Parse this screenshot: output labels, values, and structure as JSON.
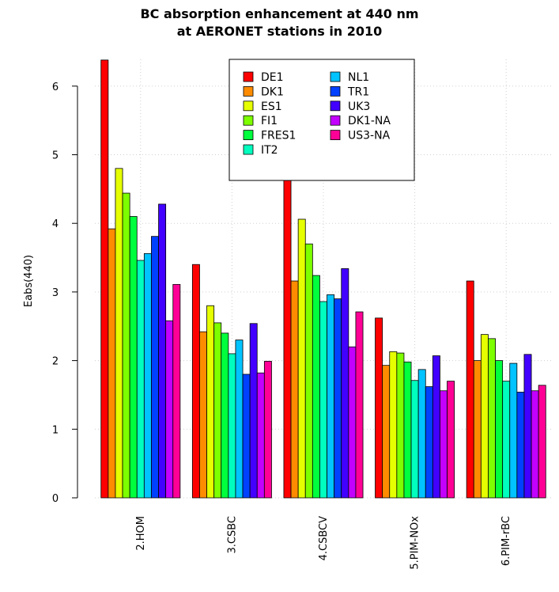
{
  "chart_data": {
    "type": "bar",
    "title": [
      "BC absorption enhancement at 440 nm",
      "at AERONET stations in 2010"
    ],
    "xlabel": "",
    "ylabel": "Eabs(440)",
    "ylim": [
      0,
      6.5
    ],
    "yticks": [
      "0",
      "1",
      "2",
      "3",
      "4",
      "5",
      "6"
    ],
    "grid": true,
    "legend_position": "top-center",
    "categories": [
      "2.HOM",
      "3.CSBC",
      "4.CSBCV",
      "5.PIM-NOx",
      "6.PIM-rBC"
    ],
    "series": [
      {
        "name": "DE1",
        "color": "#ff0000",
        "values": [
          6.38,
          3.4,
          4.92,
          2.62,
          3.16
        ]
      },
      {
        "name": "DK1",
        "color": "#ff8c00",
        "values": [
          3.92,
          2.42,
          3.16,
          1.93,
          2.0
        ]
      },
      {
        "name": "ES1",
        "color": "#e6ff00",
        "values": [
          4.8,
          2.8,
          4.06,
          2.13,
          2.38
        ]
      },
      {
        "name": "FI1",
        "color": "#7dff00",
        "values": [
          4.44,
          2.55,
          3.7,
          2.11,
          2.32
        ]
      },
      {
        "name": "FRES1",
        "color": "#00ff3c",
        "values": [
          4.1,
          2.4,
          3.24,
          1.98,
          2.0
        ]
      },
      {
        "name": "IT2",
        "color": "#00ffbe",
        "values": [
          3.46,
          2.1,
          2.86,
          1.71,
          1.7
        ]
      },
      {
        "name": "NL1",
        "color": "#00c3ff",
        "values": [
          3.56,
          2.3,
          2.96,
          1.87,
          1.96
        ]
      },
      {
        "name": "TR1",
        "color": "#0041ff",
        "values": [
          3.81,
          1.8,
          2.9,
          1.62,
          1.54
        ]
      },
      {
        "name": "UK3",
        "color": "#4100ff",
        "values": [
          4.28,
          2.54,
          3.34,
          2.07,
          2.09
        ]
      },
      {
        "name": "DK1-NA",
        "color": "#c300ff",
        "values": [
          2.58,
          1.82,
          2.2,
          1.56,
          1.56
        ]
      },
      {
        "name": "US3-NA",
        "color": "#ff0096",
        "values": [
          3.11,
          1.99,
          2.71,
          1.7,
          1.64
        ]
      }
    ]
  }
}
